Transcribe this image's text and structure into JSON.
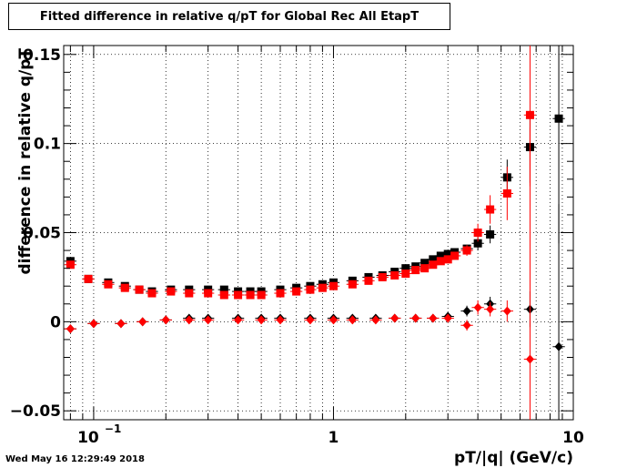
{
  "header": {
    "title": "Fitted difference in relative q/pT  for Global Rec All EtapT"
  },
  "footer": {
    "timestamp": "Wed May 16 12:29:49 2018"
  },
  "chart_data": {
    "type": "scatter",
    "title": "Fitted difference in relative q/pT  for Global Rec All EtapT",
    "xlabel": "pT/|q| (GeV/c)",
    "ylabel": "difference in relative q/pT",
    "x_scale": "log",
    "xlim": [
      0.075,
      10
    ],
    "ylim": [
      -0.055,
      0.155
    ],
    "grid": true,
    "x_tick_labels": [
      {
        "value": 0.1,
        "base": "10",
        "exp": "−1"
      },
      {
        "value": 1,
        "base": "1",
        "exp": ""
      },
      {
        "value": 10,
        "base": "10",
        "exp": ""
      }
    ],
    "y_ticks": [
      -0.05,
      0,
      0.05,
      0.1,
      0.15
    ],
    "y_tick_labels": [
      "−0.05",
      "0",
      "0.05",
      "0.1",
      "0.15"
    ],
    "series": [
      {
        "color": "#000000",
        "marker": "square",
        "points": [
          [
            0.08,
            0.034,
            0.002
          ],
          [
            0.095,
            0.024,
            0.001
          ],
          [
            0.115,
            0.022,
            0.001
          ],
          [
            0.135,
            0.02,
            0.001
          ],
          [
            0.155,
            0.018,
            0.001
          ],
          [
            0.175,
            0.017,
            0.001
          ],
          [
            0.21,
            0.018,
            0.001
          ],
          [
            0.25,
            0.018,
            0.001
          ],
          [
            0.3,
            0.018,
            0.001
          ],
          [
            0.35,
            0.018,
            0.001
          ],
          [
            0.4,
            0.017,
            0.001
          ],
          [
            0.45,
            0.017,
            0.001
          ],
          [
            0.5,
            0.017,
            0.001
          ],
          [
            0.6,
            0.018,
            0.001
          ],
          [
            0.7,
            0.019,
            0.001
          ],
          [
            0.8,
            0.02,
            0.001
          ],
          [
            0.9,
            0.021,
            0.001
          ],
          [
            1.0,
            0.022,
            0.001
          ],
          [
            1.2,
            0.023,
            0.001
          ],
          [
            1.4,
            0.025,
            0.001
          ],
          [
            1.6,
            0.026,
            0.001
          ],
          [
            1.8,
            0.028,
            0.001
          ],
          [
            2.0,
            0.03,
            0.001
          ],
          [
            2.2,
            0.031,
            0.001
          ],
          [
            2.4,
            0.033,
            0.001
          ],
          [
            2.6,
            0.035,
            0.001
          ],
          [
            2.8,
            0.037,
            0.001
          ],
          [
            3.0,
            0.038,
            0.002
          ],
          [
            3.2,
            0.039,
            0.002
          ],
          [
            3.6,
            0.041,
            0.002
          ],
          [
            4.0,
            0.044,
            0.004
          ],
          [
            4.5,
            0.049,
            0.005
          ],
          [
            5.3,
            0.081,
            0.01
          ],
          [
            6.6,
            0.098,
            0.02
          ],
          [
            8.7,
            0.114,
            0.07
          ]
        ]
      },
      {
        "color": "#000000",
        "marker": "diamond",
        "points": [
          [
            0.08,
            -0.004,
            0.002
          ],
          [
            0.1,
            -0.001,
            0.001
          ],
          [
            0.13,
            -0.001,
            0.001
          ],
          [
            0.16,
            0.0,
            0.001
          ],
          [
            0.2,
            0.001,
            0.001
          ],
          [
            0.25,
            0.002,
            0.001
          ],
          [
            0.3,
            0.002,
            0.001
          ],
          [
            0.4,
            0.002,
            0.001
          ],
          [
            0.5,
            0.002,
            0.001
          ],
          [
            0.6,
            0.002,
            0.001
          ],
          [
            0.8,
            0.002,
            0.001
          ],
          [
            1.0,
            0.002,
            0.001
          ],
          [
            1.2,
            0.002,
            0.001
          ],
          [
            1.5,
            0.002,
            0.001
          ],
          [
            1.8,
            0.002,
            0.001
          ],
          [
            2.2,
            0.002,
            0.001
          ],
          [
            2.6,
            0.002,
            0.001
          ],
          [
            3.0,
            0.003,
            0.002
          ],
          [
            3.6,
            0.006,
            0.003
          ],
          [
            4.5,
            0.01,
            0.004
          ],
          [
            6.6,
            0.007,
            0.01
          ],
          [
            8.7,
            -0.014,
            0.08
          ]
        ]
      },
      {
        "color": "#ff0000",
        "marker": "square",
        "points": [
          [
            0.08,
            0.032,
            0.002
          ],
          [
            0.095,
            0.024,
            0.001
          ],
          [
            0.115,
            0.021,
            0.001
          ],
          [
            0.135,
            0.019,
            0.001
          ],
          [
            0.155,
            0.018,
            0.001
          ],
          [
            0.175,
            0.016,
            0.001
          ],
          [
            0.21,
            0.017,
            0.001
          ],
          [
            0.25,
            0.016,
            0.001
          ],
          [
            0.3,
            0.016,
            0.001
          ],
          [
            0.35,
            0.015,
            0.001
          ],
          [
            0.4,
            0.015,
            0.001
          ],
          [
            0.45,
            0.015,
            0.001
          ],
          [
            0.5,
            0.015,
            0.001
          ],
          [
            0.6,
            0.016,
            0.001
          ],
          [
            0.7,
            0.017,
            0.001
          ],
          [
            0.8,
            0.018,
            0.001
          ],
          [
            0.9,
            0.019,
            0.001
          ],
          [
            1.0,
            0.02,
            0.001
          ],
          [
            1.2,
            0.021,
            0.001
          ],
          [
            1.4,
            0.023,
            0.001
          ],
          [
            1.6,
            0.025,
            0.001
          ],
          [
            1.8,
            0.026,
            0.001
          ],
          [
            2.0,
            0.027,
            0.001
          ],
          [
            2.2,
            0.029,
            0.001
          ],
          [
            2.4,
            0.03,
            0.001
          ],
          [
            2.6,
            0.032,
            0.001
          ],
          [
            2.8,
            0.034,
            0.001
          ],
          [
            3.0,
            0.035,
            0.002
          ],
          [
            3.2,
            0.037,
            0.002
          ],
          [
            3.6,
            0.04,
            0.003
          ],
          [
            4.0,
            0.05,
            0.005
          ],
          [
            4.5,
            0.063,
            0.008
          ],
          [
            5.3,
            0.072,
            0.015
          ],
          [
            6.6,
            0.116,
            0.04
          ]
        ]
      },
      {
        "color": "#ff0000",
        "marker": "diamond",
        "points": [
          [
            0.08,
            -0.004,
            0.002
          ],
          [
            0.1,
            -0.001,
            0.001
          ],
          [
            0.13,
            -0.001,
            0.001
          ],
          [
            0.16,
            0.0,
            0.001
          ],
          [
            0.2,
            0.001,
            0.001
          ],
          [
            0.25,
            0.001,
            0.001
          ],
          [
            0.3,
            0.001,
            0.001
          ],
          [
            0.4,
            0.001,
            0.001
          ],
          [
            0.5,
            0.001,
            0.001
          ],
          [
            0.6,
            0.001,
            0.001
          ],
          [
            0.8,
            0.001,
            0.001
          ],
          [
            1.0,
            0.001,
            0.001
          ],
          [
            1.2,
            0.001,
            0.001
          ],
          [
            1.5,
            0.001,
            0.001
          ],
          [
            1.8,
            0.002,
            0.001
          ],
          [
            2.2,
            0.002,
            0.001
          ],
          [
            2.6,
            0.002,
            0.001
          ],
          [
            3.0,
            0.002,
            0.002
          ],
          [
            3.6,
            -0.002,
            0.003
          ],
          [
            4.0,
            0.008,
            0.004
          ],
          [
            4.5,
            0.007,
            0.004
          ],
          [
            5.3,
            0.006,
            0.006
          ],
          [
            6.6,
            -0.021,
            0.13
          ]
        ]
      }
    ]
  }
}
